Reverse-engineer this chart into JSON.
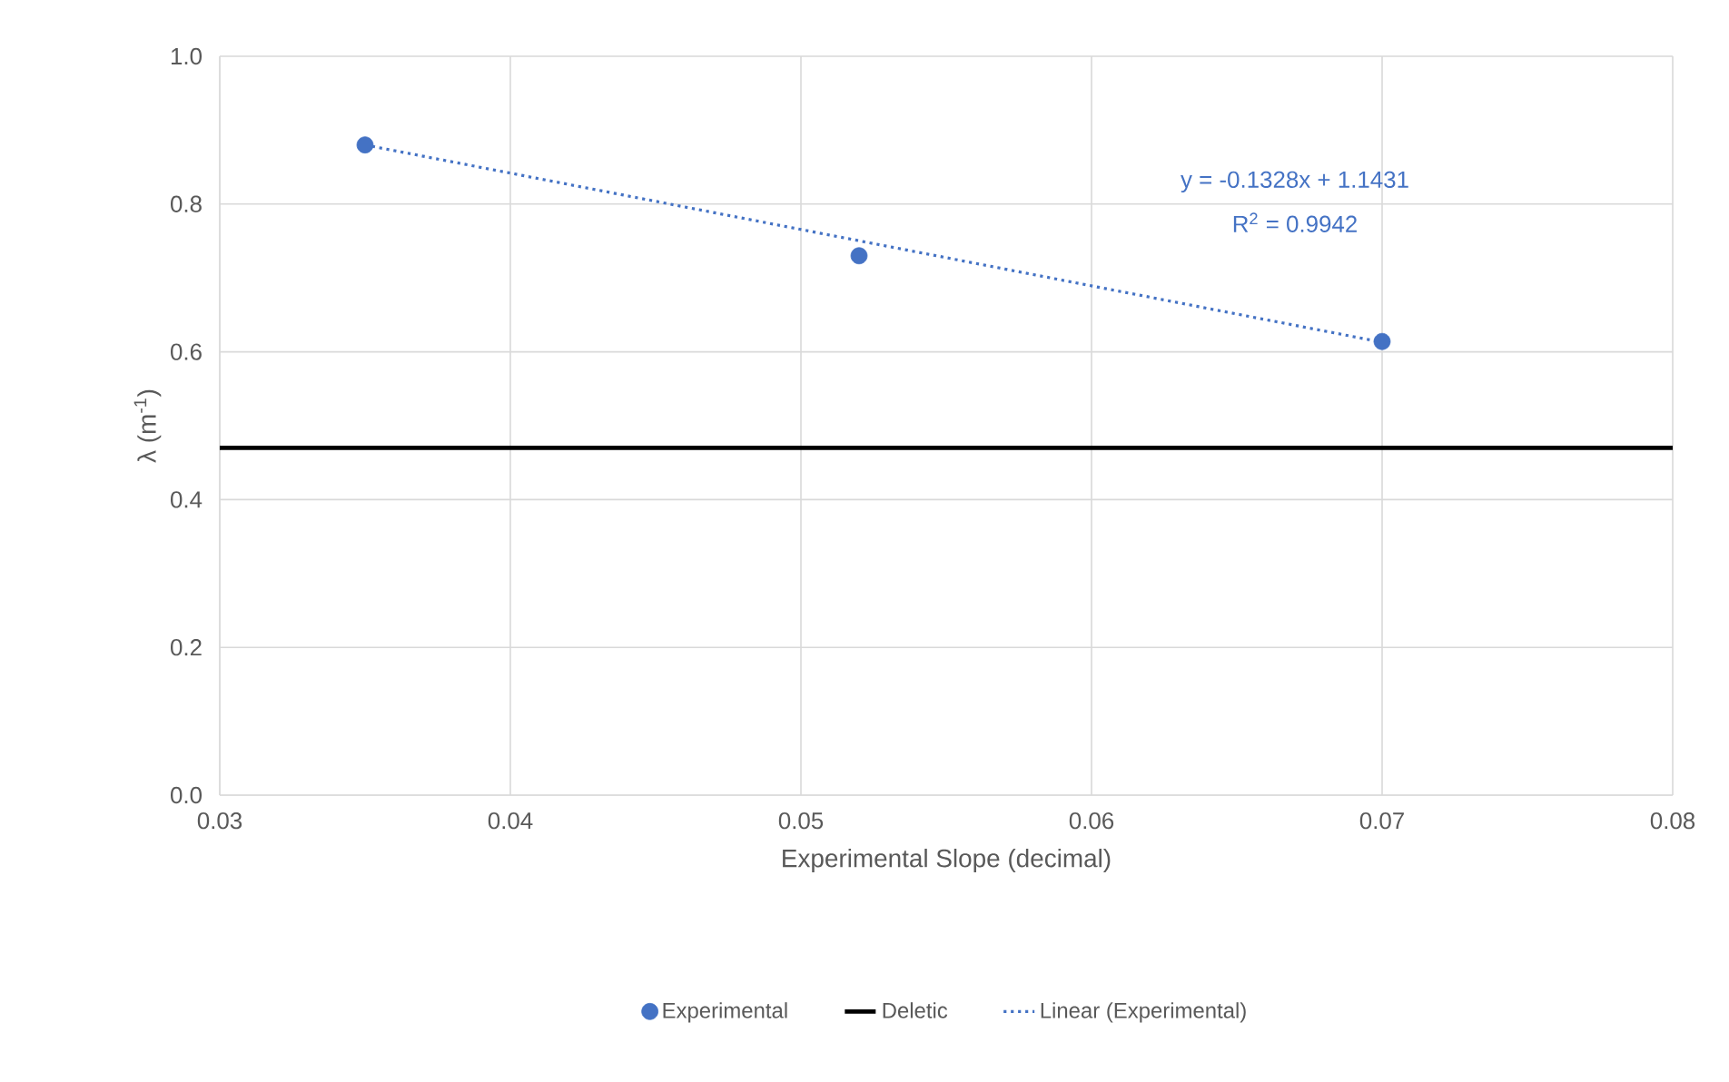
{
  "chart_data": {
    "type": "scatter",
    "xlabel": "Experimental Slope (decimal)",
    "ylabel": "λ (m$^{-1}$)",
    "xlim": [
      0.03,
      0.08
    ],
    "xticks": [
      0.03,
      0.04,
      0.05,
      0.06,
      0.07,
      0.08
    ],
    "ylim": [
      0,
      1
    ],
    "yticks": [
      {
        "value": 0,
        "label": "0.0"
      },
      0.2,
      0.4,
      0.6,
      0.8,
      {
        "value": 1,
        "label": "1.0"
      }
    ],
    "grid": true,
    "legend": "bottom",
    "series": [
      {
        "name": "Experimental",
        "marker": "circle",
        "color": "#4472c4",
        "x": [
          0.035,
          0.052,
          0.07
        ],
        "values": [
          0.88,
          0.73,
          0.614
        ]
      },
      {
        "name": "Deletic",
        "type": "line",
        "marker": "none",
        "line_style": "solid",
        "color": "#000000",
        "x": [
          0.03,
          0.08
        ],
        "values": [
          0.47,
          0.47
        ]
      },
      {
        "name": "Linear (Experimental)",
        "type": "line",
        "marker": "none",
        "line_style": "dotted",
        "color": "#4472c4",
        "x": [
          0.035,
          0.07
        ],
        "values": [
          0.88,
          0.613
        ]
      }
    ],
    "annotations": [
      "y = -0.1328x + 1.1431",
      "R$^{2}$ = 0.9942"
    ]
  }
}
